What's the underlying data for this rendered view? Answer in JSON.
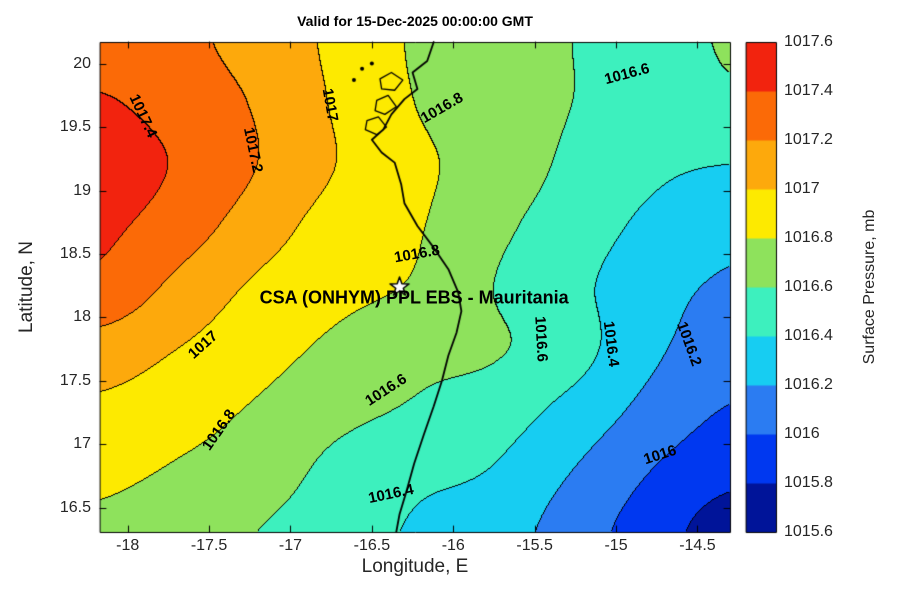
{
  "figure": {
    "title": "Valid for 15-Dec-2025 00:00:00 GMT",
    "xlabel": "Longitude, E",
    "ylabel": "Latitude, N"
  },
  "axes": {
    "xlim": [
      -18.17,
      -14.3
    ],
    "ylim": [
      16.31,
      20.17
    ],
    "xticks": [
      -18,
      -17.5,
      -17,
      -16.5,
      -16,
      -15.5,
      -15,
      -14.5
    ],
    "yticks": [
      16.5,
      17,
      17.5,
      18,
      18.5,
      19,
      19.5,
      20
    ]
  },
  "colorbar": {
    "label": "Surface Pressure, mb",
    "min": 1015.6,
    "max": 1017.6,
    "step": 0.2,
    "ticks": [
      1015.6,
      1015.8,
      1016,
      1016.2,
      1016.4,
      1016.6,
      1016.8,
      1017,
      1017.2,
      1017.4,
      1017.6
    ],
    "band_colors": [
      "#001499",
      "#0038f0",
      "#2b7cf2",
      "#17cdf2",
      "#3df0be",
      "#8ee25c",
      "#fdea00",
      "#fda90c",
      "#fb6a07",
      "#f2230e"
    ]
  },
  "chart_data": {
    "type": "heatmap",
    "subtype": "filled-contour",
    "title": "Valid for 15-Dec-2025 00:00:00 GMT",
    "xlabel": "Longitude, E",
    "ylabel": "Latitude, N",
    "zlabel": "Surface Pressure, mb",
    "zlim": [
      1015.6,
      1017.6
    ],
    "contour_interval": 0.2,
    "x": [
      -18.17,
      -17.68625,
      -17.2025,
      -16.71875,
      -16.235,
      -15.75125,
      -15.2675,
      -14.78375,
      -14.3
    ],
    "y": [
      16.31,
      16.7925,
      17.275,
      17.7575,
      18.24,
      18.7225,
      19.205,
      19.6875,
      20.17
    ],
    "values_mb": [
      [
        1016.76,
        1016.68,
        1016.6,
        1016.5,
        1016.38,
        1016.3,
        1016.1,
        1015.9,
        1015.7
      ],
      [
        1016.85,
        1016.78,
        1016.7,
        1016.55,
        1016.45,
        1016.39,
        1016.2,
        1016.0,
        1015.86
      ],
      [
        1016.96,
        1016.88,
        1016.78,
        1016.66,
        1016.58,
        1016.5,
        1016.34,
        1016.14,
        1015.99
      ],
      [
        1017.12,
        1017.0,
        1016.88,
        1016.76,
        1016.66,
        1016.62,
        1016.48,
        1016.24,
        1016.1
      ],
      [
        1017.35,
        1017.15,
        1016.97,
        1016.86,
        1016.78,
        1016.6,
        1016.45,
        1016.28,
        1016.17
      ],
      [
        1017.44,
        1017.3,
        1017.1,
        1016.92,
        1016.82,
        1016.65,
        1016.5,
        1016.36,
        1016.27
      ],
      [
        1017.5,
        1017.38,
        1017.2,
        1017.0,
        1016.84,
        1016.72,
        1016.56,
        1016.44,
        1016.4
      ],
      [
        1017.42,
        1017.32,
        1017.18,
        1016.98,
        1016.8,
        1016.7,
        1016.6,
        1016.5,
        1016.56
      ],
      [
        1017.3,
        1017.25,
        1017.12,
        1016.96,
        1016.78,
        1016.68,
        1016.6,
        1016.52,
        1016.62
      ]
    ],
    "contour_labels": [
      {
        "text": "1017.4",
        "lon": -17.908,
        "lat": 19.591,
        "rot": 65
      },
      {
        "text": "1017.2",
        "lon": -17.228,
        "lat": 19.316,
        "rot": 78
      },
      {
        "text": "1017",
        "lon": -16.756,
        "lat": 19.67,
        "rot": 80
      },
      {
        "text": "1016.8",
        "lon": -16.07,
        "lat": 19.654,
        "rot": -30
      },
      {
        "text": "1016.6",
        "lon": -14.93,
        "lat": 19.921,
        "rot": -15
      },
      {
        "text": "1016.8",
        "lon": -16.223,
        "lat": 18.498,
        "rot": -10
      },
      {
        "text": "1016.6",
        "lon": -15.463,
        "lat": 17.829,
        "rot": 87
      },
      {
        "text": "1016.4",
        "lon": -15.028,
        "lat": 17.79,
        "rot": 83
      },
      {
        "text": "1016.2",
        "lon": -14.55,
        "lat": 17.79,
        "rot": 70
      },
      {
        "text": "1017",
        "lon": -17.54,
        "lat": 17.782,
        "rot": -42
      },
      {
        "text": "1016.8",
        "lon": -17.436,
        "lat": 17.113,
        "rot": -55
      },
      {
        "text": "1016.6",
        "lon": -16.413,
        "lat": 17.428,
        "rot": -33
      },
      {
        "text": "1016.4",
        "lon": -16.382,
        "lat": 16.61,
        "rot": -12
      },
      {
        "text": "1016",
        "lon": -14.728,
        "lat": 16.917,
        "rot": -18
      }
    ],
    "site_marker": {
      "symbol": "star",
      "lon": -16.33,
      "lat": 18.24,
      "label": "CSA (ONHYM) PPL EBS  - Mauritania",
      "label_lon": -16.24,
      "label_lat": 18.15
    },
    "coastline": [
      [
        -16.12,
        20.17
      ],
      [
        -16.16,
        20.02
      ],
      [
        -16.25,
        19.93
      ],
      [
        -16.22,
        19.8
      ],
      [
        -16.3,
        19.72
      ],
      [
        -16.38,
        19.6
      ],
      [
        -16.43,
        19.48
      ],
      [
        -16.5,
        19.4
      ],
      [
        -16.44,
        19.3
      ],
      [
        -16.36,
        19.22
      ],
      [
        -16.32,
        19.05
      ],
      [
        -16.3,
        18.9
      ],
      [
        -16.22,
        18.72
      ],
      [
        -16.12,
        18.55
      ],
      [
        -16.03,
        18.38
      ],
      [
        -15.97,
        18.2
      ],
      [
        -15.95,
        18.05
      ],
      [
        -15.98,
        17.88
      ],
      [
        -16.03,
        17.7
      ],
      [
        -16.07,
        17.5
      ],
      [
        -16.12,
        17.3
      ],
      [
        -16.18,
        17.08
      ],
      [
        -16.24,
        16.85
      ],
      [
        -16.29,
        16.62
      ],
      [
        -16.33,
        16.45
      ],
      [
        -16.35,
        16.31
      ]
    ],
    "islands": [
      [
        [
          -16.45,
          19.88
        ],
        [
          -16.38,
          19.93
        ],
        [
          -16.31,
          19.87
        ],
        [
          -16.36,
          19.79
        ],
        [
          -16.44,
          19.8
        ]
      ],
      [
        [
          -16.47,
          19.71
        ],
        [
          -16.4,
          19.75
        ],
        [
          -16.35,
          19.66
        ],
        [
          -16.42,
          19.6
        ],
        [
          -16.48,
          19.63
        ]
      ],
      [
        [
          -16.53,
          19.55
        ],
        [
          -16.46,
          19.58
        ],
        [
          -16.41,
          19.5
        ],
        [
          -16.47,
          19.44
        ],
        [
          -16.54,
          19.48
        ]
      ]
    ],
    "island_dots": [
      [
        -16.56,
        19.96
      ],
      [
        -16.5,
        20.0
      ],
      [
        -16.61,
        19.87
      ]
    ]
  }
}
